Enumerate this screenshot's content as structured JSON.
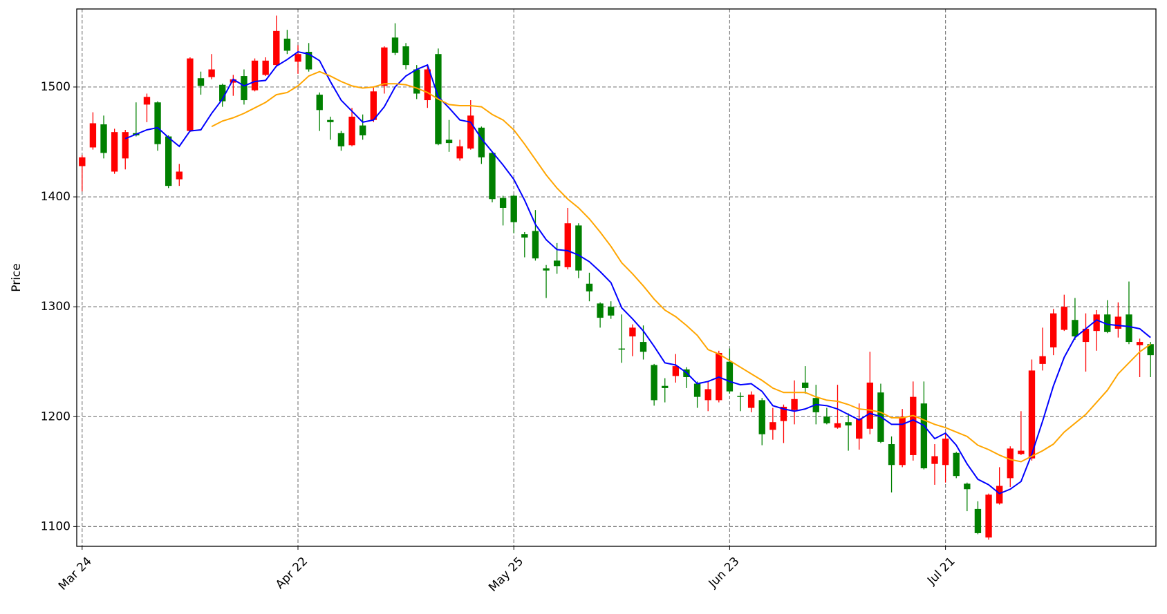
{
  "chart_data": {
    "type": "candlestick",
    "ylabel": "Price",
    "up_color": "#ff0000",
    "down_color": "#008000",
    "grid": true,
    "xlim": [
      -0.5,
      99.5
    ],
    "ylim": [
      1082,
      1571
    ],
    "xticks": [
      {
        "value": 0,
        "label": "Mar 24"
      },
      {
        "value": 20,
        "label": "Apr 22"
      },
      {
        "value": 40,
        "label": "May 25"
      },
      {
        "value": 60,
        "label": "Jun 23"
      },
      {
        "value": 80,
        "label": "Jul 21"
      }
    ],
    "yticks": [
      1100,
      1200,
      1300,
      1400,
      1500
    ],
    "open": [
      1428,
      1445,
      1466,
      1423,
      1435,
      1458,
      1484,
      1486,
      1455,
      1416,
      1460,
      1508,
      1509,
      1502,
      1504,
      1510,
      1497,
      1511,
      1520,
      1544,
      1523,
      1532,
      1493,
      1470,
      1458,
      1447,
      1465,
      1470,
      1501,
      1545,
      1537,
      1516,
      1488,
      1530,
      1452,
      1435,
      1444,
      1463,
      1440,
      1399,
      1401,
      1366,
      1369,
      1335,
      1342,
      1336,
      1374,
      1321,
      1303,
      1300,
      1262,
      1273,
      1268,
      1247,
      1228,
      1237,
      1243,
      1230,
      1215,
      1215,
      1250,
      1219,
      1208,
      1215,
      1188,
      1196,
      1206,
      1231,
      1217,
      1200,
      1190,
      1195,
      1180,
      1189,
      1222,
      1175,
      1156,
      1165,
      1212,
      1157,
      1156,
      1167,
      1139,
      1116,
      1090,
      1121,
      1144,
      1166,
      1162,
      1248,
      1263,
      1279,
      1288,
      1268,
      1278,
      1293,
      1280,
      1293,
      1265,
      1266
    ],
    "high": [
      1438,
      1477,
      1474,
      1462,
      1461,
      1486,
      1494,
      1487,
      1456,
      1430,
      1527,
      1514,
      1530,
      1503,
      1511,
      1516,
      1526,
      1527,
      1565,
      1552,
      1538,
      1540,
      1495,
      1473,
      1460,
      1481,
      1475,
      1500,
      1537,
      1558,
      1540,
      1520,
      1520,
      1535,
      1470,
      1452,
      1488,
      1464,
      1441,
      1401,
      1402,
      1368,
      1388,
      1338,
      1358,
      1390,
      1376,
      1331,
      1304,
      1305,
      1293,
      1284,
      1283,
      1248,
      1235,
      1257,
      1245,
      1232,
      1232,
      1260,
      1262,
      1222,
      1223,
      1217,
      1208,
      1211,
      1233,
      1246,
      1229,
      1208,
      1229,
      1203,
      1212,
      1259,
      1230,
      1182,
      1207,
      1232,
      1232,
      1175,
      1185,
      1168,
      1140,
      1123,
      1130,
      1154,
      1173,
      1205,
      1252,
      1281,
      1298,
      1311,
      1308,
      1294,
      1297,
      1306,
      1304,
      1323,
      1271,
      1268
    ],
    "low": [
      1405,
      1443,
      1435,
      1421,
      1425,
      1455,
      1468,
      1442,
      1408,
      1410,
      1459,
      1493,
      1507,
      1482,
      1492,
      1484,
      1496,
      1510,
      1519,
      1530,
      1512,
      1514,
      1460,
      1452,
      1442,
      1446,
      1452,
      1468,
      1494,
      1529,
      1516,
      1489,
      1481,
      1447,
      1441,
      1433,
      1443,
      1430,
      1395,
      1374,
      1367,
      1345,
      1342,
      1308,
      1330,
      1334,
      1326,
      1305,
      1281,
      1289,
      1249,
      1255,
      1252,
      1210,
      1213,
      1231,
      1226,
      1208,
      1205,
      1213,
      1221,
      1205,
      1204,
      1174,
      1179,
      1176,
      1193,
      1221,
      1193,
      1193,
      1189,
      1169,
      1170,
      1184,
      1176,
      1131,
      1154,
      1160,
      1152,
      1138,
      1140,
      1144,
      1114,
      1093,
      1088,
      1120,
      1136,
      1165,
      1160,
      1242,
      1256,
      1278,
      1270,
      1241,
      1260,
      1276,
      1272,
      1266,
      1236,
      1236
    ],
    "close": [
      1436,
      1467,
      1440,
      1459,
      1459,
      1456,
      1491,
      1448,
      1410,
      1423,
      1526,
      1501,
      1516,
      1487,
      1507,
      1488,
      1524,
      1524,
      1551,
      1533,
      1530,
      1516,
      1479,
      1468,
      1446,
      1473,
      1456,
      1496,
      1536,
      1531,
      1520,
      1494,
      1516,
      1448,
      1449,
      1446,
      1474,
      1436,
      1398,
      1390,
      1377,
      1363,
      1344,
      1333,
      1337,
      1376,
      1333,
      1314,
      1290,
      1292,
      1261,
      1281,
      1259,
      1215,
      1226,
      1246,
      1236,
      1218,
      1225,
      1258,
      1223,
      1218,
      1220,
      1184,
      1195,
      1209,
      1216,
      1226,
      1204,
      1194,
      1194,
      1192,
      1198,
      1231,
      1177,
      1156,
      1200,
      1218,
      1153,
      1164,
      1180,
      1146,
      1134,
      1094,
      1129,
      1137,
      1171,
      1169,
      1242,
      1255,
      1294,
      1300,
      1273,
      1280,
      1293,
      1277,
      1291,
      1268,
      1268,
      1256
    ],
    "lines": [
      {
        "color": "#0000ff",
        "values": [
          null,
          null,
          null,
          null,
          1453,
          1457,
          1461,
          1463,
          1454,
          1446,
          1460,
          1461,
          1476,
          1489,
          1507,
          1501,
          1505,
          1506,
          1519,
          1525,
          1532,
          1530,
          1524,
          1505,
          1488,
          1478,
          1468,
          1470,
          1482,
          1500,
          1510,
          1516,
          1520,
          1491,
          1481,
          1470,
          1468,
          1453,
          1441,
          1429,
          1416,
          1397,
          1375,
          1361,
          1352,
          1351,
          1347,
          1341,
          1332,
          1322,
          1299,
          1289,
          1278,
          1264,
          1249,
          1247,
          1240,
          1230,
          1232,
          1236,
          1232,
          1229,
          1230,
          1223,
          1210,
          1207,
          1205,
          1207,
          1211,
          1210,
          1207,
          1202,
          1197,
          1203,
          1200,
          1193,
          1193,
          1197,
          1192,
          1180,
          1185,
          1174,
          1157,
          1143,
          1138,
          1130,
          1134,
          1141,
          1166,
          1196,
          1228,
          1254,
          1272,
          1280,
          1288,
          1284,
          1283,
          1282,
          1280,
          1272
        ]
      },
      {
        "color": "#ffa500",
        "values": [
          null,
          null,
          null,
          null,
          null,
          null,
          null,
          null,
          null,
          null,
          null,
          null,
          1464,
          1469,
          1472,
          1476,
          1481,
          1486,
          1493,
          1495,
          1501,
          1510,
          1514,
          1510,
          1505,
          1501,
          1499,
          1500,
          1503,
          1503,
          1502,
          1499,
          1495,
          1489,
          1484,
          1483,
          1483,
          1482,
          1475,
          1470,
          1461,
          1448,
          1434,
          1420,
          1408,
          1398,
          1390,
          1380,
          1368,
          1355,
          1340,
          1330,
          1319,
          1307,
          1297,
          1291,
          1283,
          1274,
          1261,
          1257,
          1251,
          1245,
          1239,
          1233,
          1226,
          1222,
          1222,
          1222,
          1218,
          1215,
          1214,
          1211,
          1207,
          1206,
          1204,
          1199,
          1199,
          1201,
          1197,
          1193,
          1190,
          1186,
          1182,
          1174,
          1170,
          1165,
          1161,
          1159,
          1164,
          1169,
          1175,
          1186,
          1194,
          1202,
          1213,
          1224,
          1239,
          1249,
          1259,
          1266
        ]
      }
    ]
  }
}
